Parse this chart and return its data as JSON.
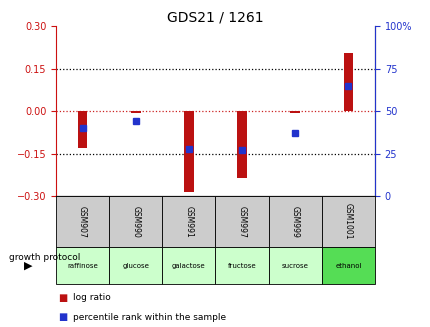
{
  "title": "GDS21 / 1261",
  "samples": [
    "GSM907",
    "GSM990",
    "GSM991",
    "GSM997",
    "GSM999",
    "GSM1001"
  ],
  "protocols": [
    "raffinose",
    "glucose",
    "galactose",
    "fructose",
    "sucrose",
    "ethanol"
  ],
  "log_ratios": [
    -0.13,
    -0.005,
    -0.285,
    -0.235,
    -0.005,
    0.205
  ],
  "percentile_ranks": [
    40,
    44,
    28,
    27,
    37,
    65
  ],
  "bar_color": "#bb1111",
  "dot_color": "#2233cc",
  "left_ylim": [
    -0.3,
    0.3
  ],
  "right_ylim": [
    0,
    100
  ],
  "left_yticks": [
    -0.3,
    -0.15,
    0,
    0.15,
    0.3
  ],
  "right_yticks": [
    0,
    25,
    50,
    75,
    100
  ],
  "zero_line_color": "#cc2222",
  "dotted_color": "black",
  "protocol_colors": [
    "#ccffcc",
    "#ccffcc",
    "#ccffcc",
    "#ccffcc",
    "#ccffcc",
    "#55dd55"
  ],
  "bg_color": "white",
  "label_log_ratio": "log ratio",
  "label_percentile": "percentile rank within the sample",
  "growth_protocol_label": "growth protocol",
  "bar_width": 0.18,
  "sample_box_color": "#cccccc",
  "title_fontsize": 10,
  "tick_fontsize": 7,
  "legend_fontsize": 7
}
